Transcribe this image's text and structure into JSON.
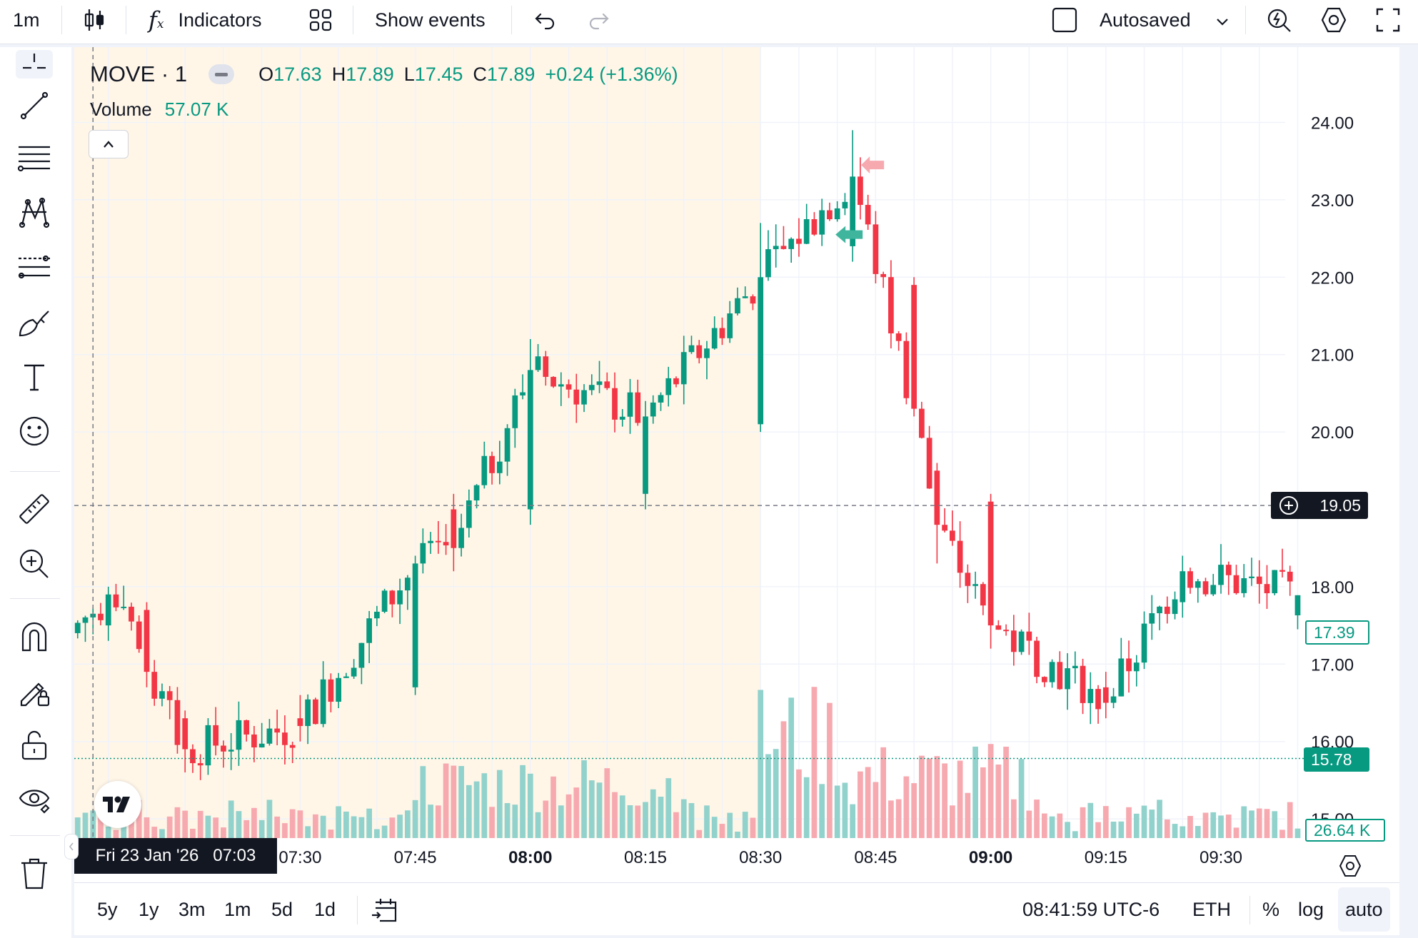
{
  "toolbar": {
    "interval": "1m",
    "indicators_label": "Indicators",
    "show_events_label": "Show events",
    "autosaved_label": "Autosaved",
    "icons": [
      "candles-icon",
      "fx-icon",
      "layouts-icon",
      "undo-icon",
      "redo-icon",
      "layout-square-icon",
      "chevron-down-icon",
      "alert-icon",
      "settings-icon",
      "fullscreen-icon"
    ]
  },
  "left_tools": [
    "crosshair-icon",
    "trendline-icon",
    "fib-lines-icon",
    "pattern-icon",
    "forecast-icon",
    "brush-icon",
    "text-icon",
    "emoji-icon",
    "ruler-icon",
    "zoom-in-icon",
    "magnet-icon",
    "lock-draw-icon",
    "unlock-icon",
    "eye-icon",
    "trash-icon"
  ],
  "legend": {
    "symbol": "MOVE · 1",
    "o_label": "O",
    "o_value": "17.63",
    "h_label": "H",
    "h_value": "17.89",
    "l_label": "L",
    "l_value": "17.45",
    "c_label": "C",
    "c_value": "17.89",
    "change": "+0.24 (+1.36%)",
    "volume_label": "Volume",
    "volume_value": "57.07 K"
  },
  "price_axis": {
    "labels": [
      "24.00",
      "23.00",
      "22.00",
      "21.00",
      "20.00",
      "18.00",
      "17.00",
      "16.00",
      "15.00"
    ],
    "crosshair_price": "19.05",
    "last_price": "17.39",
    "line_price": "15.78",
    "volume_tag": "26.64 K"
  },
  "time_axis": {
    "crosshair_time": "Fri 23 Jan '26   07:03",
    "labels": [
      {
        "text": "07:30",
        "bold": false
      },
      {
        "text": "07:45",
        "bold": false
      },
      {
        "text": "08:00",
        "bold": true
      },
      {
        "text": "08:15",
        "bold": false
      },
      {
        "text": "08:30",
        "bold": false
      },
      {
        "text": "08:45",
        "bold": false
      },
      {
        "text": "09:00",
        "bold": true
      },
      {
        "text": "09:15",
        "bold": false
      },
      {
        "text": "09:30",
        "bold": false
      }
    ]
  },
  "bottom": {
    "ranges": [
      "5y",
      "1y",
      "3m",
      "1m",
      "5d",
      "1d"
    ],
    "clock": "08:41:59 UTC-6",
    "session": "ETH",
    "percent": "%",
    "log": "log",
    "auto": "auto"
  },
  "colors": {
    "up": "#089981",
    "down": "#f23645",
    "up_volume": "#92d2cc",
    "down_volume": "#f7a9b0",
    "premarket_bg": "#fff6e8"
  },
  "chart_data": {
    "type": "candlestick",
    "interval_minutes": 1,
    "x_start": "07:00",
    "x_end": "09:40",
    "price_ylim": [
      14.9,
      24.35
    ],
    "ohlc_samples": [
      {
        "time": "07:00",
        "open": 17.3,
        "high": 17.5,
        "low": 17.0,
        "close": 17.4
      },
      {
        "time": "07:05",
        "open": 17.5,
        "high": 18.0,
        "low": 17.3,
        "close": 17.9
      },
      {
        "time": "07:10",
        "open": 17.7,
        "high": 17.8,
        "low": 16.7,
        "close": 16.9
      },
      {
        "time": "07:15",
        "open": 16.3,
        "high": 16.4,
        "low": 15.6,
        "close": 15.9
      },
      {
        "time": "07:30",
        "open": 16.3,
        "high": 16.6,
        "low": 16.0,
        "close": 16.2
      },
      {
        "time": "07:45",
        "open": 16.7,
        "high": 18.4,
        "low": 16.6,
        "close": 18.3
      },
      {
        "time": "07:50",
        "open": 19.0,
        "high": 19.2,
        "low": 18.2,
        "close": 18.5
      },
      {
        "time": "08:00",
        "open": 19.0,
        "high": 21.2,
        "low": 18.8,
        "close": 20.8
      },
      {
        "time": "08:15",
        "open": 19.2,
        "high": 20.4,
        "low": 19.0,
        "close": 20.2
      },
      {
        "time": "08:30",
        "open": 20.1,
        "high": 22.7,
        "low": 20.0,
        "close": 22.0
      },
      {
        "time": "08:42",
        "open": 22.4,
        "high": 23.9,
        "low": 22.2,
        "close": 23.3
      },
      {
        "time": "08:50",
        "open": 21.9,
        "high": 22.0,
        "low": 20.2,
        "close": 20.3
      },
      {
        "time": "08:53",
        "open": 19.5,
        "high": 19.6,
        "low": 18.3,
        "close": 18.8
      },
      {
        "time": "09:00",
        "open": 19.1,
        "high": 19.2,
        "low": 17.2,
        "close": 17.5
      },
      {
        "time": "09:15",
        "open": 16.7,
        "high": 16.9,
        "low": 16.3,
        "close": 16.5
      },
      {
        "time": "09:25",
        "open": 17.8,
        "high": 18.4,
        "low": 17.6,
        "close": 18.2
      },
      {
        "time": "09:40",
        "open": 17.63,
        "high": 17.89,
        "low": 17.45,
        "close": 17.89
      }
    ],
    "horizontal_lines": [
      19.05,
      15.78
    ]
  }
}
